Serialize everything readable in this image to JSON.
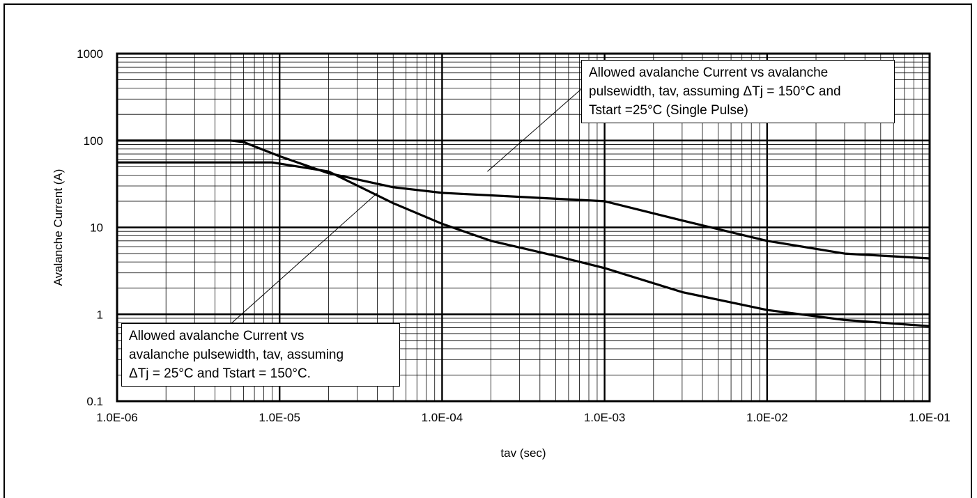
{
  "chart_data": {
    "type": "line",
    "xlabel": "tav (sec)",
    "ylabel": "Avalanche Current (A)",
    "xscale": "log",
    "yscale": "log",
    "xlim": [
      1e-06,
      0.1
    ],
    "ylim": [
      0.1,
      1000
    ],
    "x_tick_labels": [
      "1.0E-06",
      "1.0E-05",
      "1.0E-04",
      "1.0E-03",
      "1.0E-02",
      "1.0E-01"
    ],
    "y_tick_labels": [
      "0.1",
      "1",
      "10",
      "100",
      "1000"
    ],
    "grid": true,
    "series": [
      {
        "x": [
          1e-06,
          5e-06,
          6e-06,
          1e-05,
          2e-05,
          5e-05,
          0.0001,
          0.001,
          0.003,
          0.01,
          0.03,
          0.1
        ],
        "y": [
          100,
          100,
          96,
          66,
          42,
          29,
          25,
          20,
          12,
          7,
          5,
          4.4
        ]
      },
      {
        "x": [
          1e-06,
          9e-06,
          2e-05,
          5e-05,
          0.0001,
          0.0002,
          0.0005,
          0.001,
          0.003,
          0.01,
          0.03,
          0.1
        ],
        "y": [
          56,
          56,
          44,
          19,
          11,
          7,
          4.7,
          3.4,
          1.8,
          1.12,
          0.86,
          0.73
        ]
      }
    ],
    "annotations": [
      {
        "lines": [
          "Allowed avalanche Current vs avalanche",
          "pulsewidth, tav, assuming  ΔTj = 150°C and",
          "Tstart =25°C (Single Pulse)"
        ],
        "pointer": {
          "x": 0.00019,
          "y": 44
        }
      },
      {
        "lines": [
          "Allowed avalanche Current vs",
          "avalanche pulsewidth, tav, assuming",
          "ΔTj = 25°C and Tstart = 150°C."
        ],
        "pointer": {
          "x": 4e-05,
          "y": 25
        }
      }
    ]
  }
}
